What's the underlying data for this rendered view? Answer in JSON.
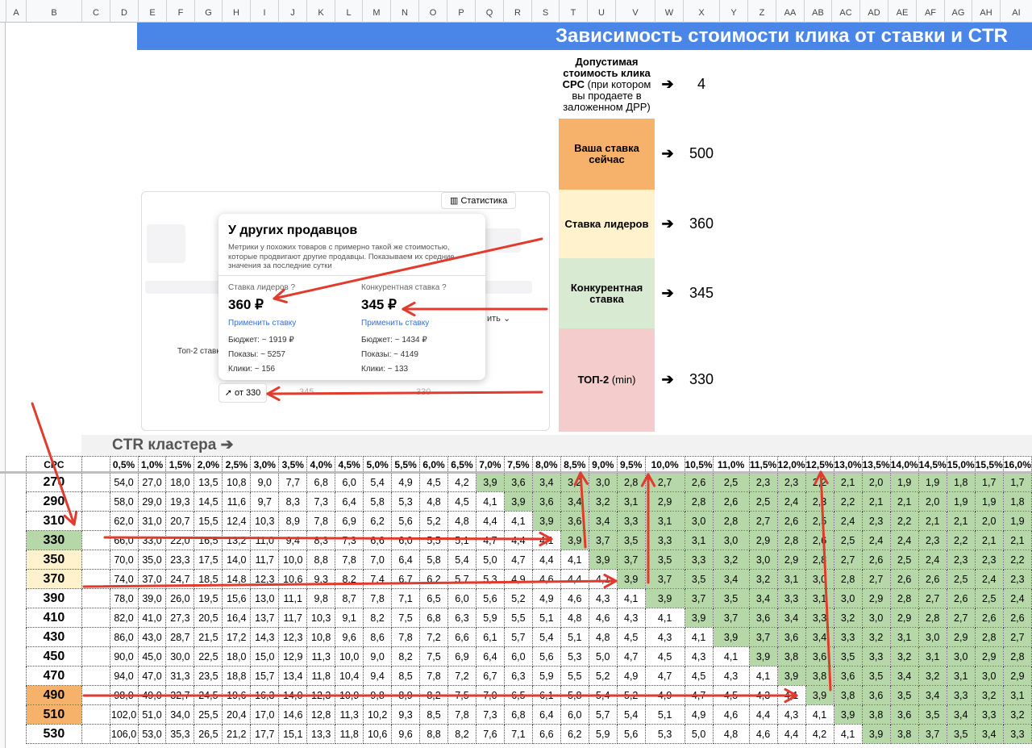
{
  "spreadsheet": {
    "column_letters": [
      "A",
      "B",
      "C",
      "D",
      "E",
      "F",
      "G",
      "H",
      "I",
      "J",
      "K",
      "L",
      "M",
      "N",
      "O",
      "P",
      "Q",
      "R",
      "S",
      "T",
      "U",
      "V",
      "W",
      "X",
      "Y",
      "Z",
      "AA",
      "AB",
      "AC",
      "AD",
      "AE",
      "AF",
      "AG",
      "AH",
      "AI"
    ]
  },
  "title": "Зависимость стоимости клика от ставки и CTR",
  "info_panel": [
    {
      "label_bold": "Допустимая стоимость клика CPC",
      "label_rest": " (при котором вы продаете в заложенном ДРР)",
      "arrow": "➔",
      "value": "4",
      "color": "#ffffff"
    },
    {
      "label_bold": "Ваша ставка сейчас",
      "label_rest": "",
      "arrow": "➔",
      "value": "500",
      "color": "#f6b26b"
    },
    {
      "label_bold": "Ставка лидеров",
      "label_rest": "",
      "arrow": "➔",
      "value": "360",
      "color": "#fff2cc"
    },
    {
      "label_bold": "Конкурентная ставка",
      "label_rest": "",
      "arrow": "➔",
      "value": "345",
      "color": "#d9ead3"
    },
    {
      "label_bold": "ТОП-2",
      "label_rest": " (min)",
      "arrow": "➔",
      "value": "330",
      "color": "#f4cccc"
    }
  ],
  "popup": {
    "stat_button": "Статистика",
    "title": "У других продавцов",
    "description": "Метрики у похожих товаров с примерно такой же стоимостью, которые продвигают другие продавцы. Показываем их средние значения за последние сутки",
    "leaders": {
      "label": "Ставка лидеров",
      "help": "?",
      "value": "360 ₽",
      "apply": "Применить ставку",
      "budget": "Бюджет: ~ 1919 ₽",
      "shows": "Показы: ~ 5257",
      "clicks": "Клики: ~ 156"
    },
    "competitive": {
      "label": "Конкурентная ставка",
      "help": "?",
      "value": "345 ₽",
      "apply": "Применить ставку",
      "budget": "Бюджет: ~ 1434 ₽",
      "shows": "Показы: ~ 4149",
      "clicks": "Клики: ~ 133"
    },
    "top2_button": "от 330",
    "top2_label": "Топ-2 ставк",
    "apply_right": "ить",
    "faded_values": [
      "345",
      "330"
    ]
  },
  "ctr_label": "CTR кластера ➔",
  "grid": {
    "cpc_header": "CPC",
    "ctr_headers": [
      "0,5%",
      "1,0%",
      "1,5%",
      "2,0%",
      "2,5%",
      "3,0%",
      "3,5%",
      "4,0%",
      "4,5%",
      "5,0%",
      "5,5%",
      "6,0%",
      "6,5%",
      "7,0%",
      "7,5%",
      "8,0%",
      "8,5%",
      "9,0%",
      "9,5%",
      "10,0%",
      "10,5%",
      "11,0%",
      "11,5%",
      "12,0%",
      "12,5%",
      "13,0%",
      "13,5%",
      "14,0%",
      "14,5%",
      "15,0%",
      "15,5%",
      "16,0%"
    ],
    "rows": [
      {
        "cpc": "270",
        "cpc_color": "",
        "values": [
          "54,0",
          "27,0",
          "18,0",
          "13,5",
          "10,8",
          "9,0",
          "7,7",
          "6,8",
          "6,0",
          "5,4",
          "4,9",
          "4,5",
          "4,2",
          "3,9",
          "3,6",
          "3,4",
          "3,2",
          "3,0",
          "2,8",
          "2,7",
          "2,6",
          "2,5",
          "2,3",
          "2,3",
          "2,2",
          "2,1",
          "2,0",
          "1,9",
          "1,9",
          "1,8",
          "1,7",
          "1,7"
        ]
      },
      {
        "cpc": "290",
        "cpc_color": "",
        "values": [
          "58,0",
          "29,0",
          "19,3",
          "14,5",
          "11,6",
          "9,7",
          "8,3",
          "7,3",
          "6,4",
          "5,8",
          "5,3",
          "4,8",
          "4,5",
          "4,1",
          "3,9",
          "3,6",
          "3,4",
          "3,2",
          "3,1",
          "2,9",
          "2,8",
          "2,6",
          "2,5",
          "2,4",
          "2,3",
          "2,2",
          "2,1",
          "2,1",
          "2,0",
          "1,9",
          "1,9",
          "1,8"
        ]
      },
      {
        "cpc": "310",
        "cpc_color": "",
        "values": [
          "62,0",
          "31,0",
          "20,7",
          "15,5",
          "12,4",
          "10,3",
          "8,9",
          "7,8",
          "6,9",
          "6,2",
          "5,6",
          "5,2",
          "4,8",
          "4,4",
          "4,1",
          "3,9",
          "3,6",
          "3,4",
          "3,3",
          "3,1",
          "3,0",
          "2,8",
          "2,7",
          "2,6",
          "2,5",
          "2,4",
          "2,3",
          "2,2",
          "2,1",
          "2,1",
          "2,0",
          "1,9"
        ]
      },
      {
        "cpc": "330",
        "cpc_color": "#b6d7a8",
        "values": [
          "66,0",
          "33,0",
          "22,0",
          "16,5",
          "13,2",
          "11,0",
          "9,4",
          "8,3",
          "7,3",
          "6,6",
          "6,0",
          "5,5",
          "5,1",
          "4,7",
          "4,4",
          "4,1",
          "3,9",
          "3,7",
          "3,5",
          "3,3",
          "3,1",
          "3,0",
          "2,9",
          "2,8",
          "2,6",
          "2,5",
          "2,4",
          "2,4",
          "2,3",
          "2,2",
          "2,1",
          "2,1"
        ]
      },
      {
        "cpc": "350",
        "cpc_color": "#fff2cc",
        "values": [
          "70,0",
          "35,0",
          "23,3",
          "17,5",
          "14,0",
          "11,7",
          "10,0",
          "8,8",
          "7,8",
          "7,0",
          "6,4",
          "5,8",
          "5,4",
          "5,0",
          "4,7",
          "4,4",
          "4,1",
          "3,9",
          "3,7",
          "3,5",
          "3,3",
          "3,2",
          "3,0",
          "2,9",
          "2,8",
          "2,7",
          "2,6",
          "2,5",
          "2,4",
          "2,3",
          "2,3",
          "2,2"
        ]
      },
      {
        "cpc": "370",
        "cpc_color": "#fff2cc",
        "values": [
          "74,0",
          "37,0",
          "24,7",
          "18,5",
          "14,8",
          "12,3",
          "10,6",
          "9,3",
          "8,2",
          "7,4",
          "6,7",
          "6,2",
          "5,7",
          "5,3",
          "4,9",
          "4,6",
          "4,4",
          "4,1",
          "3,9",
          "3,7",
          "3,5",
          "3,4",
          "3,2",
          "3,1",
          "3,0",
          "2,8",
          "2,7",
          "2,6",
          "2,6",
          "2,5",
          "2,4",
          "2,3"
        ]
      },
      {
        "cpc": "390",
        "cpc_color": "",
        "values": [
          "78,0",
          "39,0",
          "26,0",
          "19,5",
          "15,6",
          "13,0",
          "11,1",
          "9,8",
          "8,7",
          "7,8",
          "7,1",
          "6,5",
          "6,0",
          "5,6",
          "5,2",
          "4,9",
          "4,6",
          "4,3",
          "4,1",
          "3,9",
          "3,7",
          "3,5",
          "3,4",
          "3,3",
          "3,1",
          "3,0",
          "2,9",
          "2,8",
          "2,7",
          "2,6",
          "2,5",
          "2,4"
        ]
      },
      {
        "cpc": "410",
        "cpc_color": "",
        "values": [
          "82,0",
          "41,0",
          "27,3",
          "20,5",
          "16,4",
          "13,7",
          "11,7",
          "10,3",
          "9,1",
          "8,2",
          "7,5",
          "6,8",
          "6,3",
          "5,9",
          "5,5",
          "5,1",
          "4,8",
          "4,6",
          "4,3",
          "4,1",
          "3,9",
          "3,7",
          "3,6",
          "3,4",
          "3,3",
          "3,2",
          "3,0",
          "2,9",
          "2,8",
          "2,7",
          "2,6",
          "2,6"
        ]
      },
      {
        "cpc": "430",
        "cpc_color": "",
        "values": [
          "86,0",
          "43,0",
          "28,7",
          "21,5",
          "17,2",
          "14,3",
          "12,3",
          "10,8",
          "9,6",
          "8,6",
          "7,8",
          "7,2",
          "6,6",
          "6,1",
          "5,7",
          "5,4",
          "5,1",
          "4,8",
          "4,5",
          "4,3",
          "4,1",
          "3,9",
          "3,7",
          "3,6",
          "3,4",
          "3,3",
          "3,2",
          "3,1",
          "3,0",
          "2,9",
          "2,8",
          "2,7"
        ]
      },
      {
        "cpc": "450",
        "cpc_color": "",
        "values": [
          "90,0",
          "45,0",
          "30,0",
          "22,5",
          "18,0",
          "15,0",
          "12,9",
          "11,3",
          "10,0",
          "9,0",
          "8,2",
          "7,5",
          "6,9",
          "6,4",
          "6,0",
          "5,6",
          "5,3",
          "5,0",
          "4,7",
          "4,5",
          "4,3",
          "4,1",
          "3,9",
          "3,8",
          "3,6",
          "3,5",
          "3,3",
          "3,2",
          "3,1",
          "3,0",
          "2,9",
          "2,8"
        ]
      },
      {
        "cpc": "470",
        "cpc_color": "",
        "values": [
          "94,0",
          "47,0",
          "31,3",
          "23,5",
          "18,8",
          "15,7",
          "13,4",
          "11,8",
          "10,4",
          "9,4",
          "8,5",
          "7,8",
          "7,2",
          "6,7",
          "6,3",
          "5,9",
          "5,5",
          "5,2",
          "4,9",
          "4,7",
          "4,5",
          "4,3",
          "4,1",
          "3,9",
          "3,8",
          "3,6",
          "3,5",
          "3,4",
          "3,2",
          "3,1",
          "3,0",
          "2,9"
        ]
      },
      {
        "cpc": "490",
        "cpc_color": "#f6b26b",
        "values": [
          "98,0",
          "49,0",
          "32,7",
          "24,5",
          "19,6",
          "16,3",
          "14,0",
          "12,3",
          "10,9",
          "9,8",
          "8,9",
          "8,2",
          "7,5",
          "7,0",
          "6,5",
          "6,1",
          "5,8",
          "5,4",
          "5,2",
          "4,9",
          "4,7",
          "4,5",
          "4,3",
          "4,1",
          "3,9",
          "3,8",
          "3,6",
          "3,5",
          "3,4",
          "3,3",
          "3,2",
          "3,1"
        ]
      },
      {
        "cpc": "510",
        "cpc_color": "#f6b26b",
        "values": [
          "102,0",
          "51,0",
          "34,0",
          "25,5",
          "20,4",
          "17,0",
          "14,6",
          "12,8",
          "11,3",
          "10,2",
          "9,3",
          "8,5",
          "7,8",
          "7,3",
          "6,8",
          "6,4",
          "6,0",
          "5,7",
          "5,4",
          "5,1",
          "4,9",
          "4,6",
          "4,4",
          "4,3",
          "4,1",
          "3,9",
          "3,8",
          "3,6",
          "3,5",
          "3,4",
          "3,3",
          "3,2"
        ]
      },
      {
        "cpc": "530",
        "cpc_color": "",
        "values": [
          "106,0",
          "53,0",
          "35,3",
          "26,5",
          "21,2",
          "17,7",
          "15,1",
          "13,3",
          "11,8",
          "10,6",
          "9,6",
          "8,8",
          "8,2",
          "7,6",
          "7,1",
          "6,6",
          "6,2",
          "5,9",
          "5,6",
          "5,3",
          "5,0",
          "4,8",
          "4,6",
          "4,4",
          "4,2",
          "4,1",
          "3,9",
          "3,8",
          "3,7",
          "3,5",
          "3,4",
          "3,3"
        ]
      }
    ],
    "highlight_color": "#b6d7a8",
    "threshold": "4"
  }
}
